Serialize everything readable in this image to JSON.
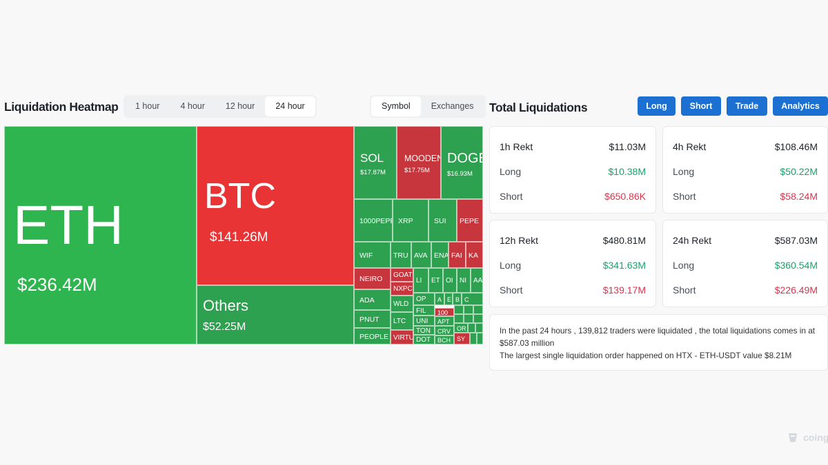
{
  "heatmap": {
    "title": "Liquidation Heatmap",
    "time_tabs": [
      "1 hour",
      "4 hour",
      "12 hour",
      "24 hour"
    ],
    "active_time": "24 hour",
    "mode_tabs": [
      "Symbol",
      "Exchanges"
    ],
    "active_mode": "Symbol",
    "tiles": [
      {
        "symbol": "ETH",
        "value": "$236.42M",
        "color": "#2fb54f"
      },
      {
        "symbol": "BTC",
        "value": "$141.26M",
        "color": "#e83434"
      },
      {
        "symbol": "Others",
        "value": "$52.25M",
        "color": "#2ea150"
      },
      {
        "symbol": "SOL",
        "value": "$17.87M",
        "color": "#2ea150"
      },
      {
        "symbol": "MOODENG",
        "value": "$17.75M",
        "color": "#c7363d"
      },
      {
        "symbol": "DOGE",
        "value": "$16.93M",
        "color": "#2ea150"
      },
      {
        "symbol": "1000PEPE"
      },
      {
        "symbol": "XRP"
      },
      {
        "symbol": "SUI"
      },
      {
        "symbol": "PEPE"
      },
      {
        "symbol": "WIF"
      },
      {
        "symbol": "TRU"
      },
      {
        "symbol": "AVA"
      },
      {
        "symbol": "ENA"
      },
      {
        "symbol": "FAI"
      },
      {
        "symbol": "KA"
      },
      {
        "symbol": "NEIRO"
      },
      {
        "symbol": "GOAT"
      },
      {
        "symbol": "NXPC"
      },
      {
        "symbol": "LI"
      },
      {
        "symbol": "ET"
      },
      {
        "symbol": "OI"
      },
      {
        "symbol": "NI"
      },
      {
        "symbol": "AA"
      },
      {
        "symbol": "ADA"
      },
      {
        "symbol": "WLD"
      },
      {
        "symbol": "OP"
      },
      {
        "symbol": "A"
      },
      {
        "symbol": "E"
      },
      {
        "symbol": "B"
      },
      {
        "symbol": "C"
      },
      {
        "symbol": "PNUT"
      },
      {
        "symbol": "LTC"
      },
      {
        "symbol": "FIL"
      },
      {
        "symbol": "100"
      },
      {
        "symbol": "UNI"
      },
      {
        "symbol": "APT"
      },
      {
        "symbol": "PEOPLE"
      },
      {
        "symbol": "VIRTU"
      },
      {
        "symbol": "TON"
      },
      {
        "symbol": "CRV"
      },
      {
        "symbol": "OR"
      },
      {
        "symbol": "DOT"
      },
      {
        "symbol": "BCH"
      },
      {
        "symbol": "SY"
      }
    ]
  },
  "total": {
    "title": "Total Liquidations",
    "buttons": [
      "Long",
      "Short",
      "Trade",
      "Analytics"
    ],
    "cards": [
      {
        "title": "1h Rekt",
        "total": "$11.03M",
        "long_label": "Long",
        "long": "$10.38M",
        "short_label": "Short",
        "short": "$650.86K"
      },
      {
        "title": "4h Rekt",
        "total": "$108.46M",
        "long_label": "Long",
        "long": "$50.22M",
        "short_label": "Short",
        "short": "$58.24M"
      },
      {
        "title": "12h Rekt",
        "total": "$480.81M",
        "long_label": "Long",
        "long": "$341.63M",
        "short_label": "Short",
        "short": "$139.17M"
      },
      {
        "title": "24h Rekt",
        "total": "$587.03M",
        "long_label": "Long",
        "long": "$360.54M",
        "short_label": "Short",
        "short": "$226.49M"
      }
    ],
    "summary_line1": "In the past 24 hours , 139,812 traders were liquidated , the total liquidations comes in at $587.03 million",
    "summary_line2": "The largest single liquidation order happened on HTX - ETH-USDT value $8.21M"
  },
  "colors": {
    "long": "#16a36b",
    "short": "#e0314b",
    "button": "#1b70d2"
  },
  "watermark": {
    "icon": "coinglass-logo-icon",
    "text": "coingl"
  }
}
